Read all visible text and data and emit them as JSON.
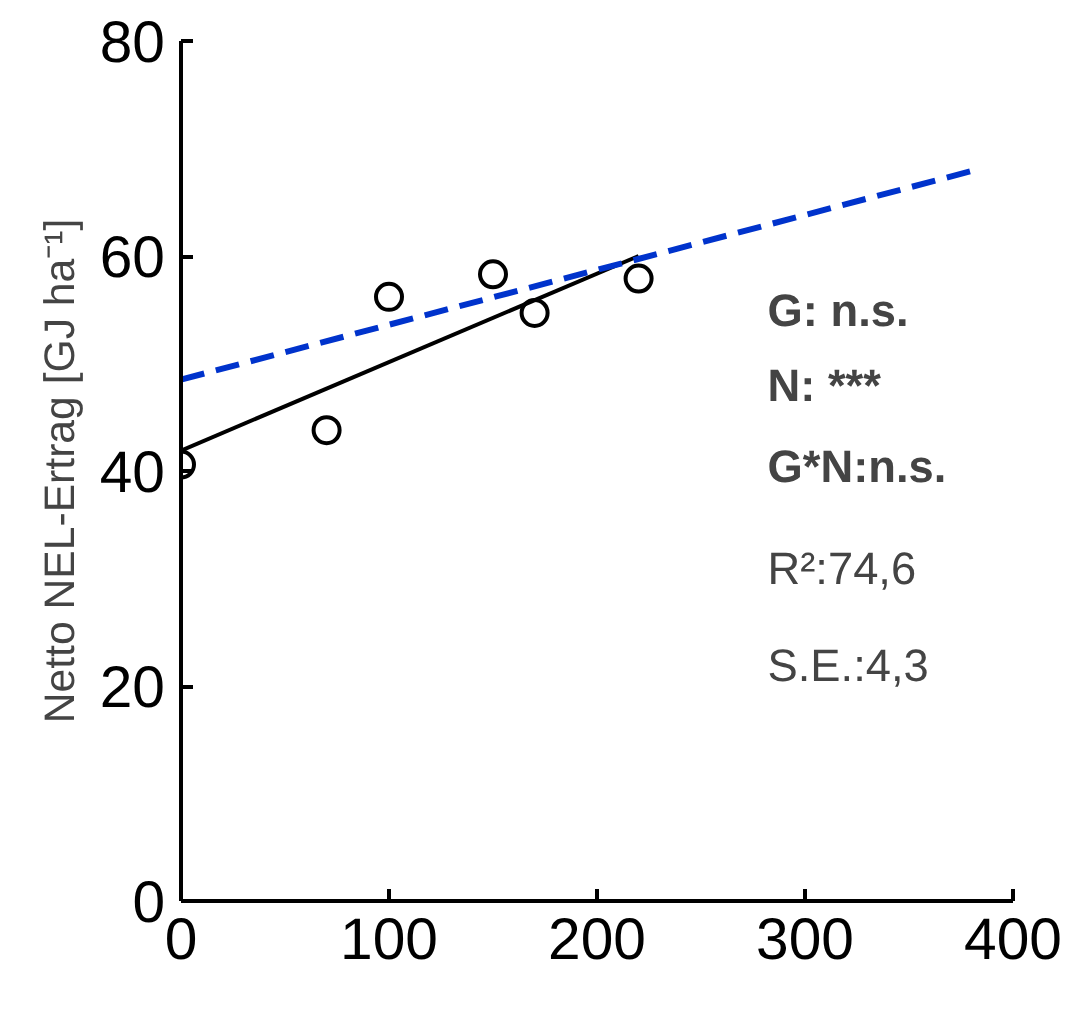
{
  "chart_data": {
    "type": "scatter",
    "ylabel": "Netto NEL-Ertrag [GJ ha⁻¹]",
    "xlim": [
      0,
      400
    ],
    "ylim": [
      0,
      80
    ],
    "xticks": [
      0,
      100,
      200,
      300,
      400
    ],
    "yticks": [
      0,
      20,
      40,
      60,
      80
    ],
    "grid": false,
    "series": [
      {
        "color": "#000000",
        "marker": "circle",
        "x": [
          0,
          70,
          100,
          150,
          170,
          220
        ],
        "values": [
          40.6,
          43.8,
          56.2,
          58.3,
          54.7,
          57.9
        ]
      },
      {
        "type": "line",
        "color": "#000000",
        "line_style": "solid",
        "x": [
          0,
          220
        ],
        "values": [
          41.9,
          60
        ]
      },
      {
        "type": "line",
        "color": "#0033cc",
        "line_style": "dashed",
        "x": [
          0,
          380
        ],
        "values": [
          48.5,
          67.9
        ]
      }
    ],
    "annotations": [
      "G: n.s.",
      "N: ***",
      "G*N:n.s.",
      "R²:74,6",
      "S.E.:4,3"
    ]
  }
}
